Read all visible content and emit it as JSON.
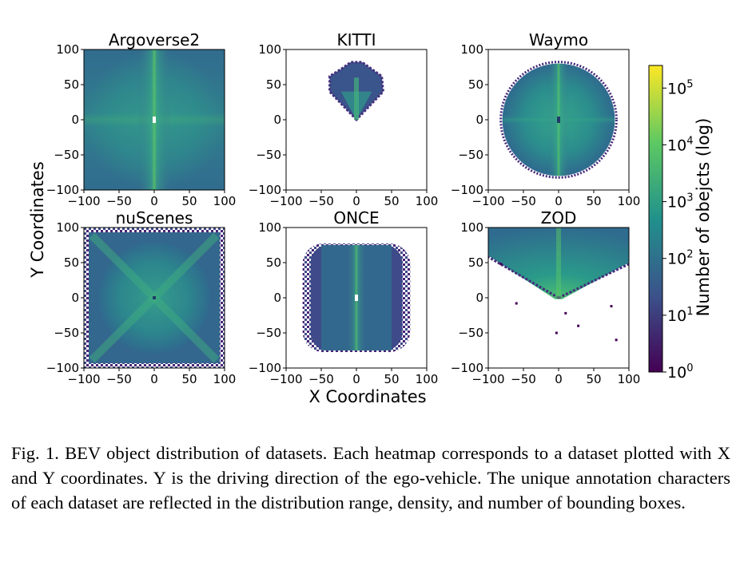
{
  "figure": {
    "xlabel": "X Coordinates",
    "ylabel": "Y Coordinates",
    "caption": "Fig. 1.  BEV object distribution of datasets. Each heatmap corresponds to a dataset plotted with X and Y coordinates. Y is the driving direction of the ego-vehicle. The unique annotation characters of each dataset are reflected in the distribution range, density, and number of bounding boxes."
  },
  "colors": {
    "viridis_low": "#440154",
    "viridis_mid_low": "#3b528b",
    "viridis_mid": "#21918c",
    "viridis_mid_high": "#5ec962",
    "viridis_high": "#fde725"
  },
  "chart_data": [
    {
      "type": "heatmap",
      "title": "Argoverse2",
      "xlim": [
        -100,
        100
      ],
      "ylim": [
        -100,
        100
      ],
      "xticks": [
        "−100",
        "−50",
        "0",
        "50",
        "100"
      ],
      "yticks": [
        "100",
        "50",
        "0",
        "−50",
        "−100"
      ],
      "coverage": "full square -100..100 in X and Y, dense vertical band along X=0"
    },
    {
      "type": "heatmap",
      "title": "KITTI",
      "xlim": [
        -100,
        100
      ],
      "ylim": [
        -100,
        100
      ],
      "xticks": [
        "−100",
        "−50",
        "0",
        "50",
        "100"
      ],
      "yticks": [
        "100",
        "50",
        "0",
        "−50",
        "−100"
      ],
      "coverage": "forward wedge only, Y 0..~80, X -40..40"
    },
    {
      "type": "heatmap",
      "title": "Waymo",
      "xlim": [
        -100,
        100
      ],
      "ylim": [
        -100,
        100
      ],
      "xticks": [
        "−100",
        "−50",
        "0",
        "50",
        "100"
      ],
      "yticks": [
        "100",
        "50",
        "0",
        "−50",
        "−100"
      ],
      "coverage": "disk of radius ~80 centred on origin"
    },
    {
      "type": "heatmap",
      "title": "nuScenes",
      "xlim": [
        -100,
        100
      ],
      "ylim": [
        -100,
        100
      ],
      "xticks": [
        "−100",
        "−50",
        "0",
        "50",
        "100"
      ],
      "yticks": [
        "100",
        "50",
        "0",
        "−50",
        "−100"
      ],
      "coverage": "full square with diagonal cross pattern"
    },
    {
      "type": "heatmap",
      "title": "ONCE",
      "xlim": [
        -100,
        100
      ],
      "ylim": [
        -100,
        100
      ],
      "xticks": [
        "−100",
        "−50",
        "0",
        "50",
        "100"
      ],
      "yticks": [
        "100",
        "50",
        "0",
        "−50",
        "−100"
      ],
      "coverage": "rounded rectangle X -75..75, Y -75..75"
    },
    {
      "type": "heatmap",
      "title": "ZOD",
      "xlim": [
        -100,
        100
      ],
      "ylim": [
        -100,
        100
      ],
      "xticks": [
        "−100",
        "−50",
        "0",
        "50",
        "100"
      ],
      "yticks": [
        "100",
        "50",
        "0",
        "−50",
        "−100"
      ],
      "coverage": "forward V-shaped cone, Y 0..100 across full X range"
    }
  ],
  "colorbar": {
    "label": "Number of obejcts (log)",
    "scale": "log",
    "ticks": [
      {
        "base": "10",
        "exp": "0",
        "value": 1
      },
      {
        "base": "10",
        "exp": "1",
        "value": 10
      },
      {
        "base": "10",
        "exp": "2",
        "value": 100
      },
      {
        "base": "10",
        "exp": "3",
        "value": 1000
      },
      {
        "base": "10",
        "exp": "4",
        "value": 10000
      },
      {
        "base": "10",
        "exp": "5",
        "value": 100000
      }
    ],
    "max_value": 250000
  }
}
